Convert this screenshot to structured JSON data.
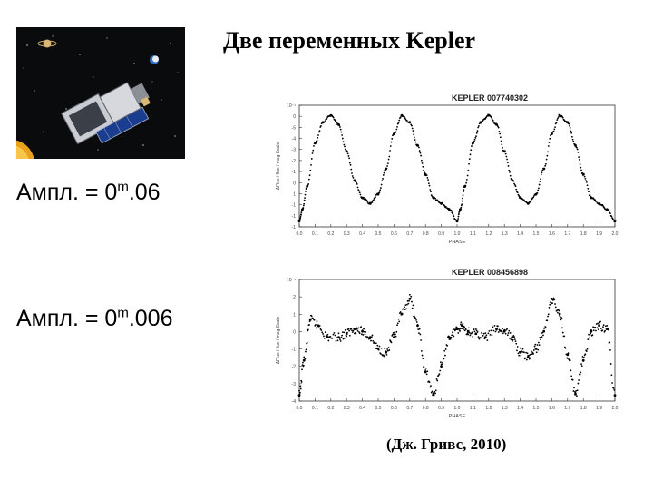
{
  "slide": {
    "title": "Две переменных Kepler",
    "amplitude_1": {
      "prefix": "Ампл. = 0",
      "sup": "m",
      "suffix": ".06"
    },
    "amplitude_2": {
      "prefix": "Ампл. = 0",
      "sup": "m",
      "suffix": ".006"
    },
    "citation": "(Дж. Гривс, 2010)"
  },
  "image": {
    "subject": "Kepler space telescope illustration",
    "icon": "spacecraft-illustration"
  },
  "chart_data": [
    {
      "type": "scatter",
      "title": "KEPLER 007740302",
      "xlabel": "PHASE",
      "ylabel": "ΔFlux / flux / mag Scale",
      "xlim": [
        0,
        2.0
      ],
      "x_ticks": [
        "0.0",
        "0.1",
        "0.2",
        "0.3",
        "0.4",
        "0.5",
        "0.6",
        "0.7",
        "0.8",
        "0.9",
        "1.0",
        "1.1",
        "1.2",
        "1.3",
        "1.4",
        "1.5",
        "1.6",
        "1.7",
        "1.8",
        "1.9",
        "2.0"
      ],
      "y_ticks": [
        "10⁻¹",
        "0",
        "-5",
        "-4",
        "-3",
        "-2",
        "-1",
        "0",
        "1",
        "-1",
        "-1",
        "-1"
      ],
      "ylim": [
        0,
        1
      ],
      "series": [
        {
          "x": [
            0.0,
            0.02,
            0.05,
            0.1,
            0.15,
            0.2,
            0.25,
            0.3,
            0.35,
            0.4,
            0.45,
            0.5,
            0.55,
            0.6,
            0.65,
            0.7,
            0.75,
            0.8,
            0.85,
            0.9,
            0.95,
            1.0,
            1.02,
            1.05,
            1.1,
            1.15,
            1.2,
            1.25,
            1.3,
            1.35,
            1.4,
            1.45,
            1.5,
            1.55,
            1.6,
            1.65,
            1.7,
            1.75,
            1.8,
            1.85,
            1.9,
            1.95,
            2.0
          ],
          "y": [
            0.05,
            0.15,
            0.35,
            0.72,
            0.9,
            0.96,
            0.88,
            0.65,
            0.4,
            0.25,
            0.2,
            0.28,
            0.5,
            0.8,
            0.96,
            0.9,
            0.7,
            0.45,
            0.25,
            0.2,
            0.15,
            0.05,
            0.15,
            0.35,
            0.72,
            0.9,
            0.96,
            0.88,
            0.65,
            0.4,
            0.25,
            0.2,
            0.28,
            0.5,
            0.8,
            0.96,
            0.9,
            0.7,
            0.45,
            0.25,
            0.2,
            0.15,
            0.05
          ]
        }
      ]
    },
    {
      "type": "scatter",
      "title": "KEPLER 008456898",
      "xlabel": "PHASE",
      "ylabel": "ΔFlux / flux / mag Scale",
      "xlim": [
        0,
        2.0
      ],
      "x_ticks": [
        "0.0",
        "0.1",
        "0.2",
        "0.3",
        "0.4",
        "0.5",
        "0.6",
        "0.7",
        "0.8",
        "0.9",
        "1.0",
        "1.1",
        "1.2",
        "1.3",
        "1.4",
        "1.5",
        "1.6",
        "1.7",
        "1.8",
        "1.9",
        "2.0"
      ],
      "y_ticks": [
        "10⁻¹",
        "2",
        "1",
        "0",
        "-1",
        "-2",
        "-3",
        "-4"
      ],
      "ylim": [
        0,
        1
      ],
      "series": [
        {
          "x": [
            0.0,
            0.03,
            0.07,
            0.12,
            0.18,
            0.25,
            0.3,
            0.35,
            0.4,
            0.45,
            0.5,
            0.55,
            0.6,
            0.65,
            0.7,
            0.75,
            0.8,
            0.85,
            0.9,
            0.95,
            1.0,
            1.03,
            1.07,
            1.12,
            1.18,
            1.25,
            1.3,
            1.35,
            1.4,
            1.45,
            1.5,
            1.55,
            1.6,
            1.65,
            1.7,
            1.75,
            1.8,
            1.85,
            1.9,
            1.95,
            2.0
          ],
          "y": [
            0.05,
            0.35,
            0.7,
            0.65,
            0.55,
            0.55,
            0.58,
            0.62,
            0.6,
            0.55,
            0.45,
            0.42,
            0.55,
            0.75,
            0.88,
            0.65,
            0.25,
            0.06,
            0.3,
            0.55,
            0.62,
            0.65,
            0.6,
            0.58,
            0.55,
            0.62,
            0.6,
            0.55,
            0.42,
            0.38,
            0.45,
            0.6,
            0.88,
            0.75,
            0.4,
            0.06,
            0.35,
            0.6,
            0.65,
            0.62,
            0.05
          ]
        }
      ]
    }
  ]
}
